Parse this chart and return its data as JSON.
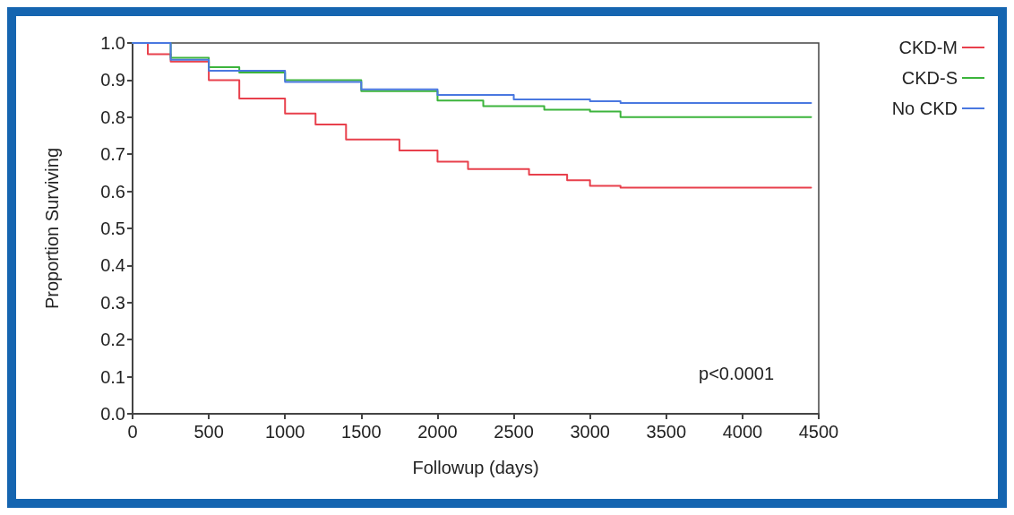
{
  "chart_data": {
    "type": "step",
    "xlabel": "Followup (days)",
    "ylabel": "Proportion Surviving",
    "xlim": [
      0,
      4500
    ],
    "xticks": [
      0,
      500,
      1000,
      1500,
      2000,
      2500,
      3000,
      3500,
      4000,
      4500
    ],
    "ylim": [
      0,
      1
    ],
    "yticks": [
      {
        "value": 0,
        "label": "0.0"
      },
      0.1,
      0.2,
      0.3,
      0.4,
      0.5,
      0.6,
      0.7,
      0.8,
      0.9,
      {
        "value": 1,
        "label": "1.0"
      }
    ],
    "grid": false,
    "legend": "top right",
    "marker": "none",
    "line_style": "solid",
    "annotations": [
      "p<0.0001"
    ],
    "series": [
      {
        "name": "CKD-M",
        "color": "#e8404c",
        "x": [
          0,
          100,
          250,
          500,
          700,
          1000,
          1200,
          1400,
          1750,
          2000,
          2200,
          2600,
          2850,
          3000,
          3200,
          4450
        ],
        "values": [
          1.0,
          0.97,
          0.95,
          0.9,
          0.85,
          0.81,
          0.78,
          0.74,
          0.71,
          0.68,
          0.66,
          0.645,
          0.63,
          0.615,
          0.61,
          0.61
        ]
      },
      {
        "name": "CKD-S",
        "color": "#3cb43c",
        "x": [
          0,
          250,
          500,
          700,
          1000,
          1500,
          2000,
          2300,
          2700,
          3000,
          3200,
          4450
        ],
        "values": [
          1.0,
          0.96,
          0.935,
          0.92,
          0.9,
          0.87,
          0.845,
          0.83,
          0.82,
          0.815,
          0.8,
          0.8
        ]
      },
      {
        "name": "No CKD",
        "color": "#4a78e0",
        "x": [
          0,
          250,
          500,
          1000,
          1500,
          2000,
          2500,
          3000,
          3200,
          4450
        ],
        "values": [
          1.0,
          0.955,
          0.925,
          0.895,
          0.875,
          0.86,
          0.848,
          0.843,
          0.838,
          0.838
        ]
      }
    ]
  }
}
